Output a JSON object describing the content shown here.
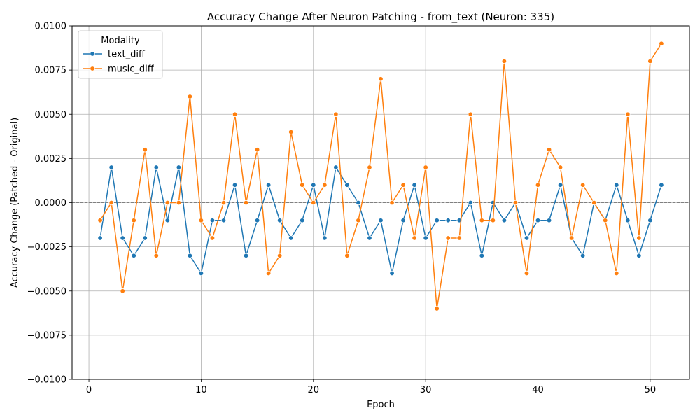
{
  "chart_data": {
    "type": "line",
    "title": "Accuracy Change After Neuron Patching - from_text (Neuron: 335)",
    "xlabel": "Epoch",
    "ylabel": "Accuracy Change (Patched - Original)",
    "xlim": [
      -1.5,
      53.5
    ],
    "ylim": [
      -0.01,
      0.01
    ],
    "xticks": [
      0,
      10,
      20,
      30,
      40,
      50
    ],
    "xtick_labels": [
      "0",
      "10",
      "20",
      "30",
      "40",
      "50"
    ],
    "yticks": [
      -0.01,
      -0.0075,
      -0.005,
      -0.0025,
      0,
      0.0025,
      0.005,
      0.0075,
      0.01
    ],
    "ytick_labels": [
      "−0.0100",
      "−0.0075",
      "−0.0050",
      "−0.0025",
      "0.0000",
      "0.0025",
      "0.0050",
      "0.0075",
      "0.0100"
    ],
    "grid": true,
    "reference_line": {
      "y": 0,
      "style": "dashed",
      "color": "#808080"
    },
    "legend": {
      "title": "Modality",
      "placement": "top-left"
    },
    "x": [
      1,
      2,
      3,
      4,
      5,
      6,
      7,
      8,
      9,
      10,
      11,
      12,
      13,
      14,
      15,
      16,
      17,
      18,
      19,
      20,
      21,
      22,
      23,
      24,
      25,
      26,
      27,
      28,
      29,
      30,
      31,
      32,
      33,
      34,
      35,
      36,
      37,
      38,
      39,
      40,
      41,
      42,
      43,
      44,
      45,
      46,
      47,
      48,
      49,
      50,
      51
    ],
    "series": [
      {
        "name": "text_diff",
        "color": "#1f77b4",
        "values": [
          -0.002,
          0.002,
          -0.002,
          -0.003,
          -0.002,
          0.002,
          -0.001,
          0.002,
          -0.003,
          -0.004,
          -0.001,
          -0.001,
          0.001,
          -0.003,
          -0.001,
          0.001,
          -0.001,
          -0.002,
          -0.001,
          0.001,
          -0.002,
          0.002,
          0.001,
          0.0,
          -0.002,
          -0.001,
          -0.004,
          -0.001,
          0.001,
          -0.002,
          -0.001,
          -0.001,
          -0.001,
          0.0,
          -0.003,
          0.0,
          -0.001,
          0.0,
          -0.002,
          -0.001,
          -0.001,
          0.001,
          -0.002,
          -0.003,
          0.0,
          -0.001,
          0.001,
          -0.001,
          -0.003,
          -0.001,
          0.001
        ]
      },
      {
        "name": "music_diff",
        "color": "#ff7f0e",
        "values": [
          -0.001,
          0.0,
          -0.005,
          -0.001,
          0.003,
          -0.003,
          0.0,
          0.0,
          0.006,
          -0.001,
          -0.002,
          0.0,
          0.005,
          0.0,
          0.003,
          -0.004,
          -0.003,
          0.004,
          0.001,
          0.0,
          0.001,
          0.005,
          -0.003,
          -0.001,
          0.002,
          0.007,
          0.0,
          0.001,
          -0.002,
          0.002,
          -0.006,
          -0.002,
          -0.002,
          0.005,
          -0.001,
          -0.001,
          0.008,
          0.0,
          -0.004,
          0.001,
          0.003,
          0.002,
          -0.002,
          0.001,
          0.0,
          -0.001,
          -0.004,
          0.005,
          -0.002,
          0.008,
          0.009
        ]
      }
    ]
  }
}
